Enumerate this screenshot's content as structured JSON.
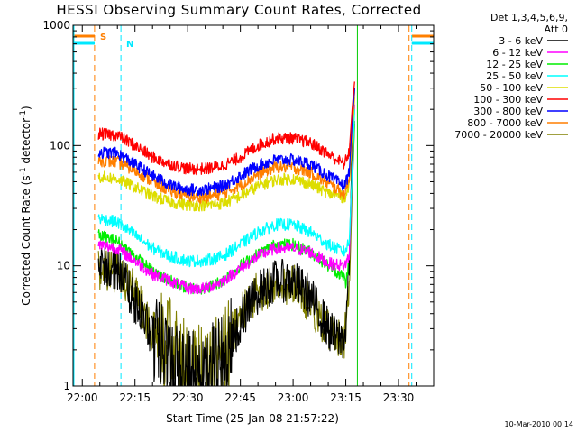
{
  "chart_data": {
    "type": "line",
    "title": "HESSI Observing Summary Count Rates, Corrected",
    "xlabel": "Start Time (25-Jan-08 21:57:22)",
    "ylabel": "Corrected Count Rate (s⁻¹ detector⁻¹)",
    "ylabel_parts": {
      "before": "Corrected Count Rate (s",
      "sup1": "-1",
      "middle": " detector",
      "sup2": "-1",
      "after": ")"
    },
    "x_unit": "minutes since 00:00 UT, 25-Jan-08",
    "xlim": [
      1317.37,
      1420
    ],
    "ylim": [
      1,
      1000
    ],
    "y_scale": "log",
    "x_ticks": [
      {
        "value": 1320,
        "label": "22:00"
      },
      {
        "value": 1335,
        "label": "22:15"
      },
      {
        "value": 1350,
        "label": "22:30"
      },
      {
        "value": 1365,
        "label": "22:45"
      },
      {
        "value": 1380,
        "label": "23:00"
      },
      {
        "value": 1395,
        "label": "23:15"
      },
      {
        "value": 1410,
        "label": "23:30"
      }
    ],
    "y_ticks": [
      {
        "value": 1,
        "label": "1"
      },
      {
        "value": 10,
        "label": "10"
      },
      {
        "value": 100,
        "label": "100"
      },
      {
        "value": 1000,
        "label": "1000"
      }
    ],
    "legend_header": [
      "Det 1,3,4,5,6,9,",
      "Att 0"
    ],
    "legend_placement": "right, outside plot",
    "timestamp": "10-Mar-2010 00:14",
    "markers": [
      {
        "label": "S",
        "color": "#ff7f00",
        "x_line": 1323.5,
        "x_end_line": 1413.0
      },
      {
        "label": "N",
        "color": "#00e8ff",
        "x_line": 1331.0,
        "x_end_line": 1413.0
      }
    ],
    "series": [
      {
        "name": "3 - 6 keV",
        "color": "#000000",
        "points": [
          [
            1324.6,
            9.5
          ],
          [
            1330,
            9.5
          ],
          [
            1335,
            5
          ],
          [
            1340,
            2.6
          ],
          [
            1345,
            1.5
          ],
          [
            1350,
            1.2
          ],
          [
            1355,
            1.2
          ],
          [
            1360,
            1.6
          ],
          [
            1365,
            3.5
          ],
          [
            1370,
            6
          ],
          [
            1375,
            7.5
          ],
          [
            1380,
            7.5
          ],
          [
            1385,
            5.5
          ],
          [
            1390,
            3
          ],
          [
            1392,
            2.5
          ],
          [
            1394.6,
            2.5
          ],
          [
            1395,
            3
          ],
          [
            1396,
            12
          ],
          [
            1396.8,
            100
          ],
          [
            1397.5,
            300
          ]
        ]
      },
      {
        "name": "6 - 12 keV",
        "color": "#ff00ff",
        "points": [
          [
            1324.6,
            15
          ],
          [
            1330,
            14
          ],
          [
            1335,
            11
          ],
          [
            1340,
            8.5
          ],
          [
            1345,
            7.5
          ],
          [
            1350,
            6.5
          ],
          [
            1355,
            6.5
          ],
          [
            1360,
            7.5
          ],
          [
            1365,
            9.5
          ],
          [
            1370,
            12
          ],
          [
            1375,
            14
          ],
          [
            1380,
            14
          ],
          [
            1385,
            13
          ],
          [
            1390,
            10.5
          ],
          [
            1394.6,
            10
          ],
          [
            1396,
            12
          ],
          [
            1396.8,
            60
          ],
          [
            1397.5,
            220
          ]
        ]
      },
      {
        "name": "12 - 25 keV",
        "color": "#00ee00",
        "points": [
          [
            1324.6,
            18
          ],
          [
            1330,
            16
          ],
          [
            1335,
            12
          ],
          [
            1340,
            9
          ],
          [
            1345,
            7.5
          ],
          [
            1350,
            6.5
          ],
          [
            1355,
            6.5
          ],
          [
            1360,
            7.5
          ],
          [
            1365,
            10
          ],
          [
            1370,
            12.5
          ],
          [
            1375,
            15
          ],
          [
            1380,
            15
          ],
          [
            1385,
            13
          ],
          [
            1390,
            10
          ],
          [
            1394.6,
            8
          ],
          [
            1395,
            7
          ],
          [
            1396,
            12
          ],
          [
            1396.8,
            50
          ],
          [
            1397.5,
            160
          ]
        ]
      },
      {
        "name": "25 - 50 keV",
        "color": "#00ffff",
        "points": [
          [
            1324.6,
            25
          ],
          [
            1330,
            23
          ],
          [
            1335,
            18
          ],
          [
            1340,
            14
          ],
          [
            1345,
            12
          ],
          [
            1350,
            11
          ],
          [
            1355,
            11
          ],
          [
            1360,
            12
          ],
          [
            1365,
            15
          ],
          [
            1370,
            19
          ],
          [
            1375,
            22
          ],
          [
            1380,
            22
          ],
          [
            1385,
            19
          ],
          [
            1390,
            15
          ],
          [
            1394.6,
            13
          ],
          [
            1396,
            16
          ],
          [
            1396.8,
            60
          ],
          [
            1397.5,
            200
          ]
        ]
      },
      {
        "name": "50 - 100 keV",
        "color": "#dddd00",
        "points": [
          [
            1324.6,
            55
          ],
          [
            1330,
            53
          ],
          [
            1335,
            45
          ],
          [
            1340,
            38
          ],
          [
            1345,
            34
          ],
          [
            1350,
            32
          ],
          [
            1355,
            32
          ],
          [
            1360,
            33
          ],
          [
            1365,
            38
          ],
          [
            1370,
            46
          ],
          [
            1375,
            52
          ],
          [
            1380,
            53
          ],
          [
            1385,
            48
          ],
          [
            1390,
            40
          ],
          [
            1394.6,
            37
          ],
          [
            1396,
            45
          ],
          [
            1396.8,
            120
          ],
          [
            1397.5,
            250
          ]
        ]
      },
      {
        "name": "100 - 300 keV",
        "color": "#ff0000",
        "points": [
          [
            1324.6,
            125
          ],
          [
            1330,
            122
          ],
          [
            1335,
            100
          ],
          [
            1340,
            80
          ],
          [
            1345,
            70
          ],
          [
            1350,
            64
          ],
          [
            1355,
            64
          ],
          [
            1360,
            68
          ],
          [
            1365,
            80
          ],
          [
            1370,
            100
          ],
          [
            1375,
            115
          ],
          [
            1380,
            115
          ],
          [
            1385,
            105
          ],
          [
            1390,
            85
          ],
          [
            1394.6,
            70
          ],
          [
            1396,
            90
          ],
          [
            1396.8,
            200
          ],
          [
            1397.5,
            340
          ]
        ]
      },
      {
        "name": "300 - 800 keV",
        "color": "#0000ff",
        "points": [
          [
            1324.6,
            88
          ],
          [
            1330,
            86
          ],
          [
            1335,
            70
          ],
          [
            1340,
            56
          ],
          [
            1345,
            47
          ],
          [
            1350,
            43
          ],
          [
            1355,
            43
          ],
          [
            1360,
            46
          ],
          [
            1365,
            56
          ],
          [
            1370,
            68
          ],
          [
            1375,
            76
          ],
          [
            1380,
            76
          ],
          [
            1385,
            70
          ],
          [
            1390,
            56
          ],
          [
            1394.6,
            46
          ],
          [
            1396,
            60
          ],
          [
            1396.8,
            160
          ],
          [
            1397.5,
            300
          ]
        ]
      },
      {
        "name": "800 - 7000 keV",
        "color": "#ff7f00",
        "points": [
          [
            1324.6,
            75
          ],
          [
            1330,
            73
          ],
          [
            1335,
            62
          ],
          [
            1340,
            50
          ],
          [
            1345,
            42
          ],
          [
            1350,
            38
          ],
          [
            1355,
            37
          ],
          [
            1360,
            40
          ],
          [
            1365,
            47
          ],
          [
            1370,
            58
          ],
          [
            1375,
            66
          ],
          [
            1380,
            66
          ],
          [
            1385,
            60
          ],
          [
            1390,
            48
          ],
          [
            1394.6,
            40
          ],
          [
            1396,
            52
          ],
          [
            1396.8,
            140
          ],
          [
            1397.5,
            280
          ]
        ]
      },
      {
        "name": "7000 - 20000 keV",
        "color": "#808000",
        "points": [
          [
            1324.6,
            9
          ],
          [
            1330,
            9
          ],
          [
            1335,
            6
          ],
          [
            1340,
            2.8
          ],
          [
            1345,
            2.2
          ],
          [
            1350,
            1.5
          ],
          [
            1355,
            1.3
          ],
          [
            1360,
            1.8
          ],
          [
            1365,
            4
          ],
          [
            1370,
            6
          ],
          [
            1375,
            7
          ],
          [
            1380,
            7
          ],
          [
            1385,
            5
          ],
          [
            1390,
            2.8
          ],
          [
            1394.6,
            2.5
          ],
          [
            1396,
            6
          ],
          [
            1396.8,
            40
          ],
          [
            1397.5,
            150
          ]
        ]
      }
    ]
  }
}
